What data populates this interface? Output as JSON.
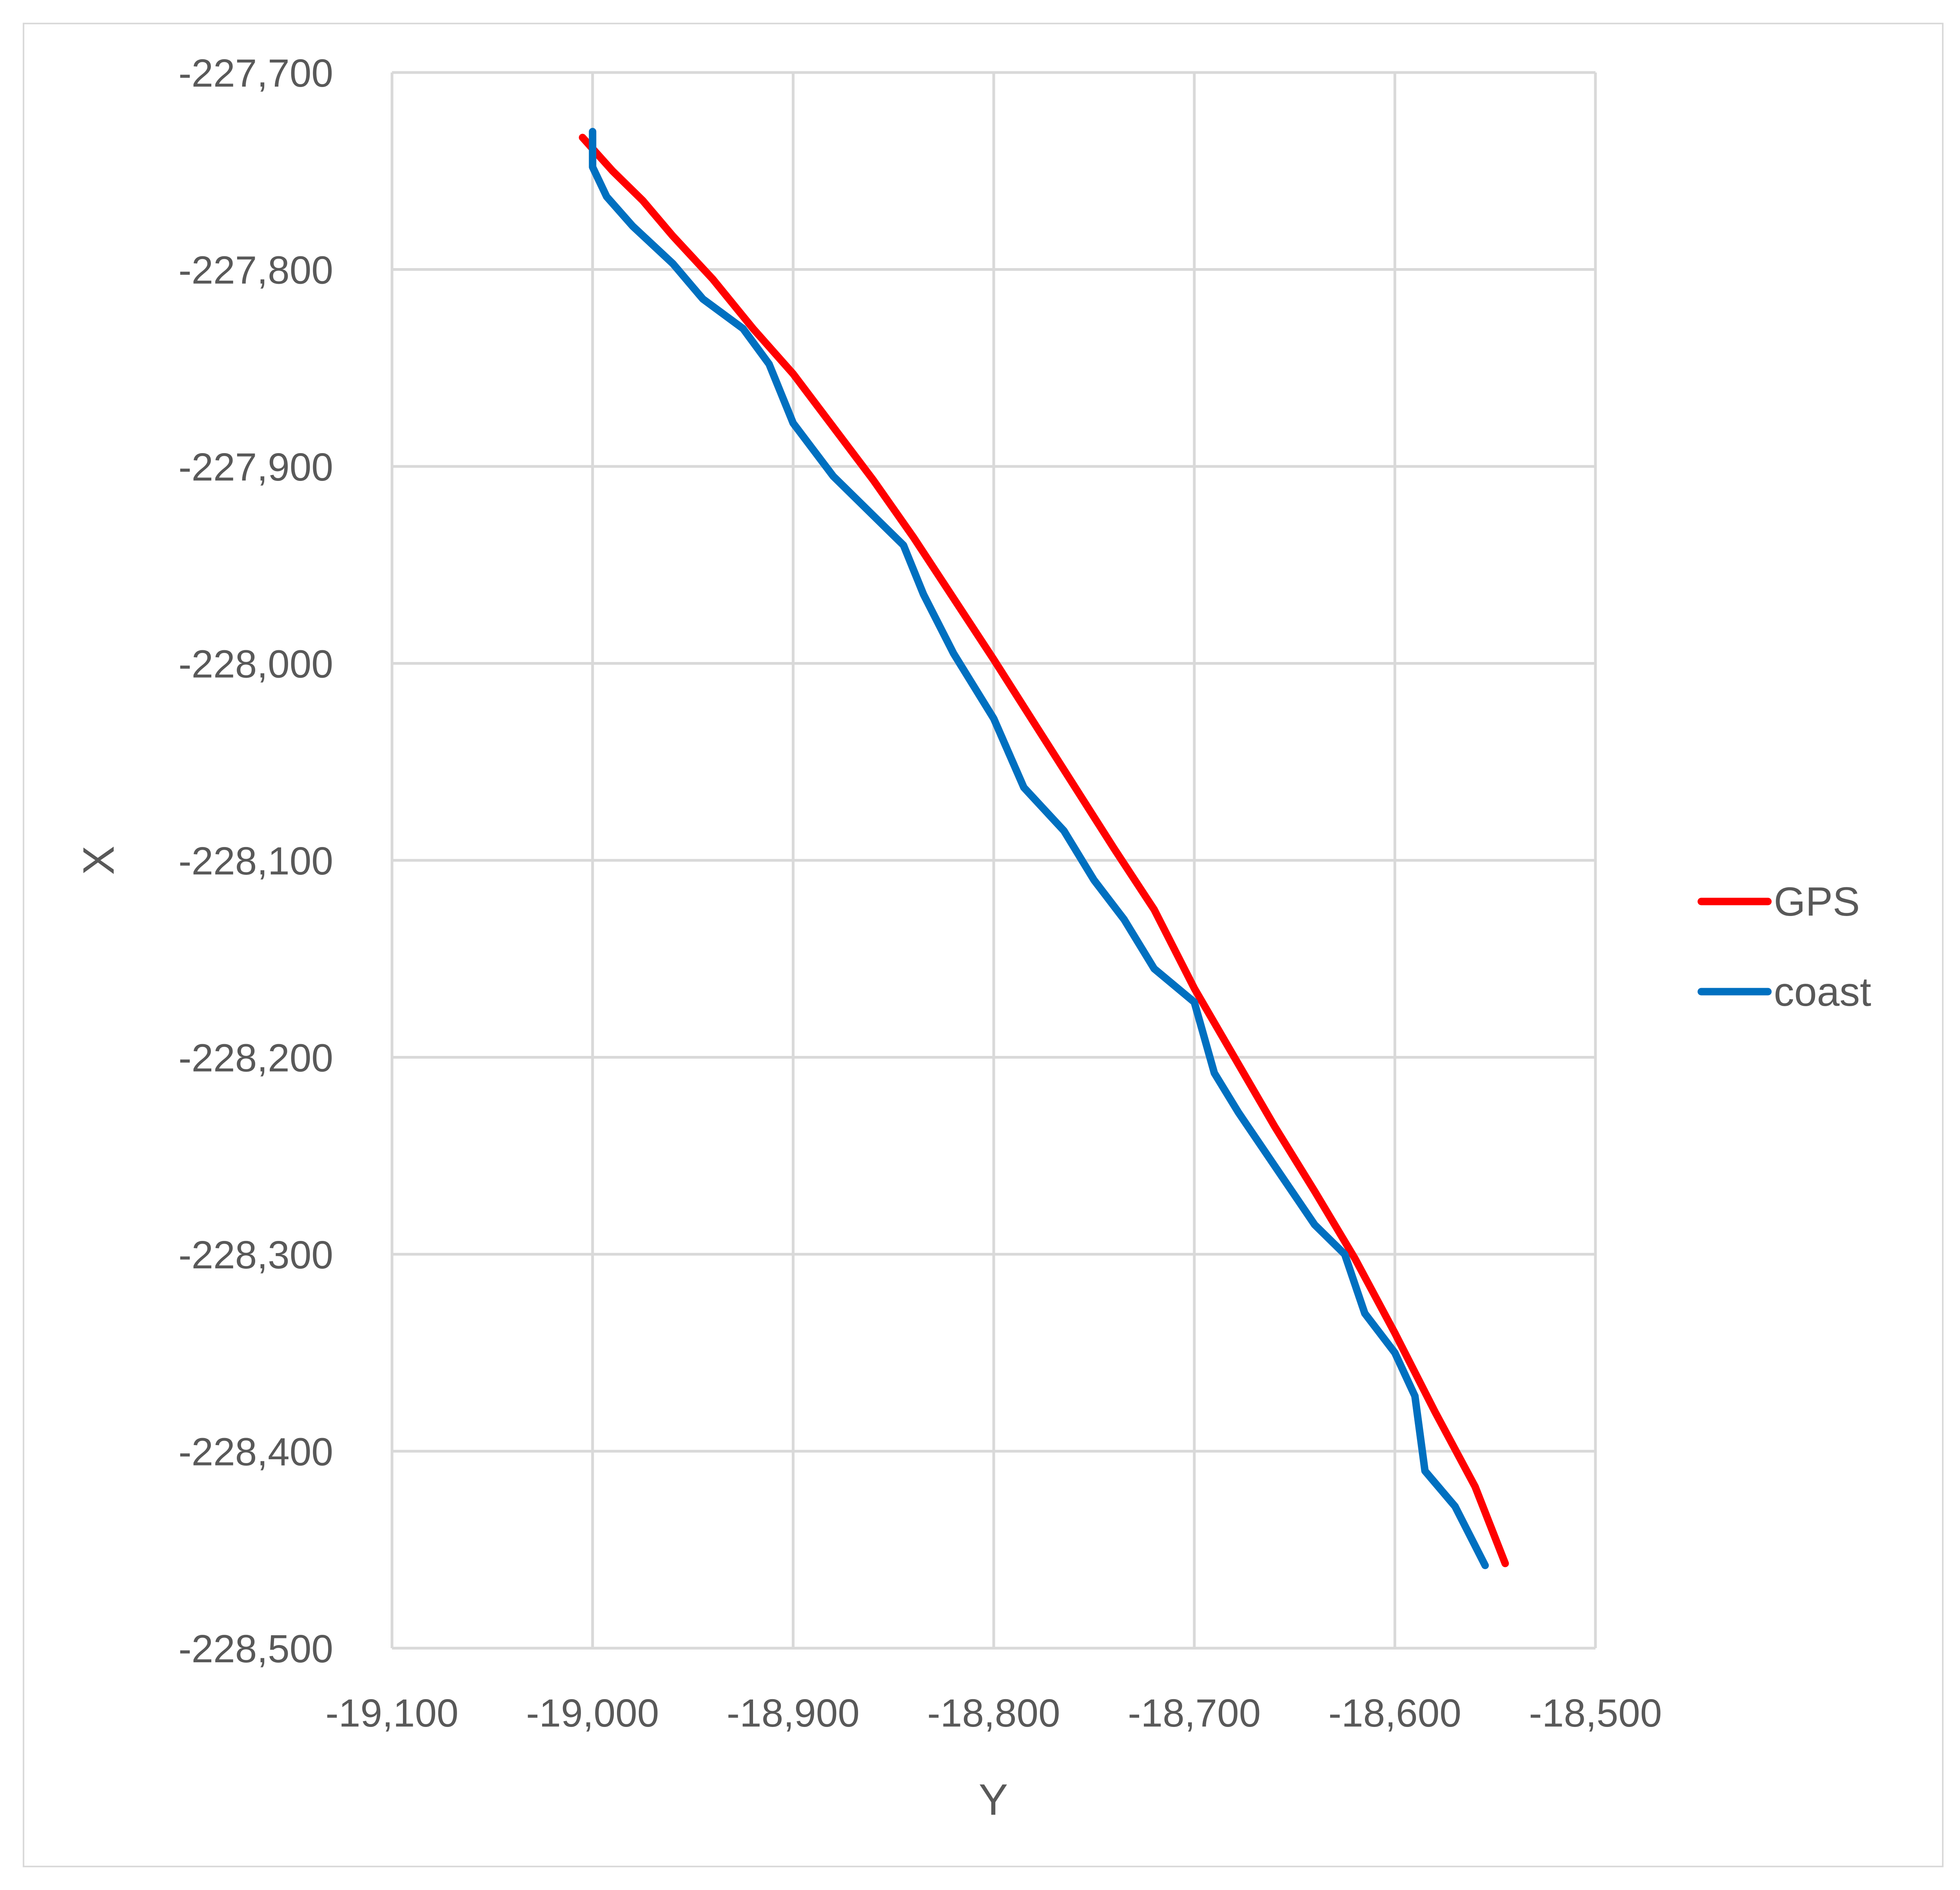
{
  "chart_data": {
    "type": "line",
    "title": "",
    "xlabel": "Y",
    "ylabel": "X",
    "xlim": [
      -19100,
      -18500
    ],
    "ylim": [
      -228500,
      -227700
    ],
    "xticks": [
      -19100,
      -19000,
      -18900,
      -18800,
      -18700,
      -18600,
      -18500
    ],
    "yticks": [
      -227700,
      -227800,
      -227900,
      -228000,
      -228100,
      -228200,
      -228300,
      -228400,
      -228500
    ],
    "xtick_labels": [
      "-19,100",
      "-19,000",
      "-18,900",
      "-18,800",
      "-18,700",
      "-18,600",
      "-18,500"
    ],
    "ytick_labels": [
      "-227,700",
      "-227,800",
      "-227,900",
      "-228,000",
      "-228,100",
      "-228,200",
      "-228,300",
      "-228,400",
      "-228,500"
    ],
    "grid": true,
    "legend_position": "right",
    "series": [
      {
        "name": "GPS",
        "color": "#ff0000",
        "points": [
          [
            -19005,
            -227733
          ],
          [
            -18990,
            -227750
          ],
          [
            -18975,
            -227765
          ],
          [
            -18960,
            -227783
          ],
          [
            -18940,
            -227805
          ],
          [
            -18920,
            -227830
          ],
          [
            -18900,
            -227853
          ],
          [
            -18880,
            -227880
          ],
          [
            -18860,
            -227907
          ],
          [
            -18840,
            -227936
          ],
          [
            -18820,
            -227967
          ],
          [
            -18800,
            -227998
          ],
          [
            -18780,
            -228030
          ],
          [
            -18760,
            -228062
          ],
          [
            -18740,
            -228094
          ],
          [
            -18720,
            -228125
          ],
          [
            -18700,
            -228165
          ],
          [
            -18680,
            -228200
          ],
          [
            -18660,
            -228235
          ],
          [
            -18640,
            -228268
          ],
          [
            -18620,
            -228302
          ],
          [
            -18600,
            -228340
          ],
          [
            -18580,
            -228380
          ],
          [
            -18560,
            -228418
          ],
          [
            -18545,
            -228457
          ]
        ]
      },
      {
        "name": "coast",
        "color": "#0070c0",
        "points": [
          [
            -19000,
            -227730
          ],
          [
            -19000,
            -227748
          ],
          [
            -18993,
            -227763
          ],
          [
            -18980,
            -227778
          ],
          [
            -18960,
            -227797
          ],
          [
            -18945,
            -227815
          ],
          [
            -18925,
            -227830
          ],
          [
            -18912,
            -227848
          ],
          [
            -18900,
            -227878
          ],
          [
            -18880,
            -227905
          ],
          [
            -18860,
            -227925
          ],
          [
            -18845,
            -227940
          ],
          [
            -18835,
            -227965
          ],
          [
            -18820,
            -227995
          ],
          [
            -18800,
            -228028
          ],
          [
            -18785,
            -228063
          ],
          [
            -18765,
            -228085
          ],
          [
            -18750,
            -228110
          ],
          [
            -18735,
            -228130
          ],
          [
            -18720,
            -228155
          ],
          [
            -18700,
            -228172
          ],
          [
            -18690,
            -228208
          ],
          [
            -18678,
            -228228
          ],
          [
            -18660,
            -228255
          ],
          [
            -18640,
            -228285
          ],
          [
            -18625,
            -228300
          ],
          [
            -18615,
            -228330
          ],
          [
            -18600,
            -228350
          ],
          [
            -18590,
            -228372
          ],
          [
            -18585,
            -228410
          ],
          [
            -18570,
            -228428
          ],
          [
            -18555,
            -228458
          ]
        ]
      }
    ]
  }
}
